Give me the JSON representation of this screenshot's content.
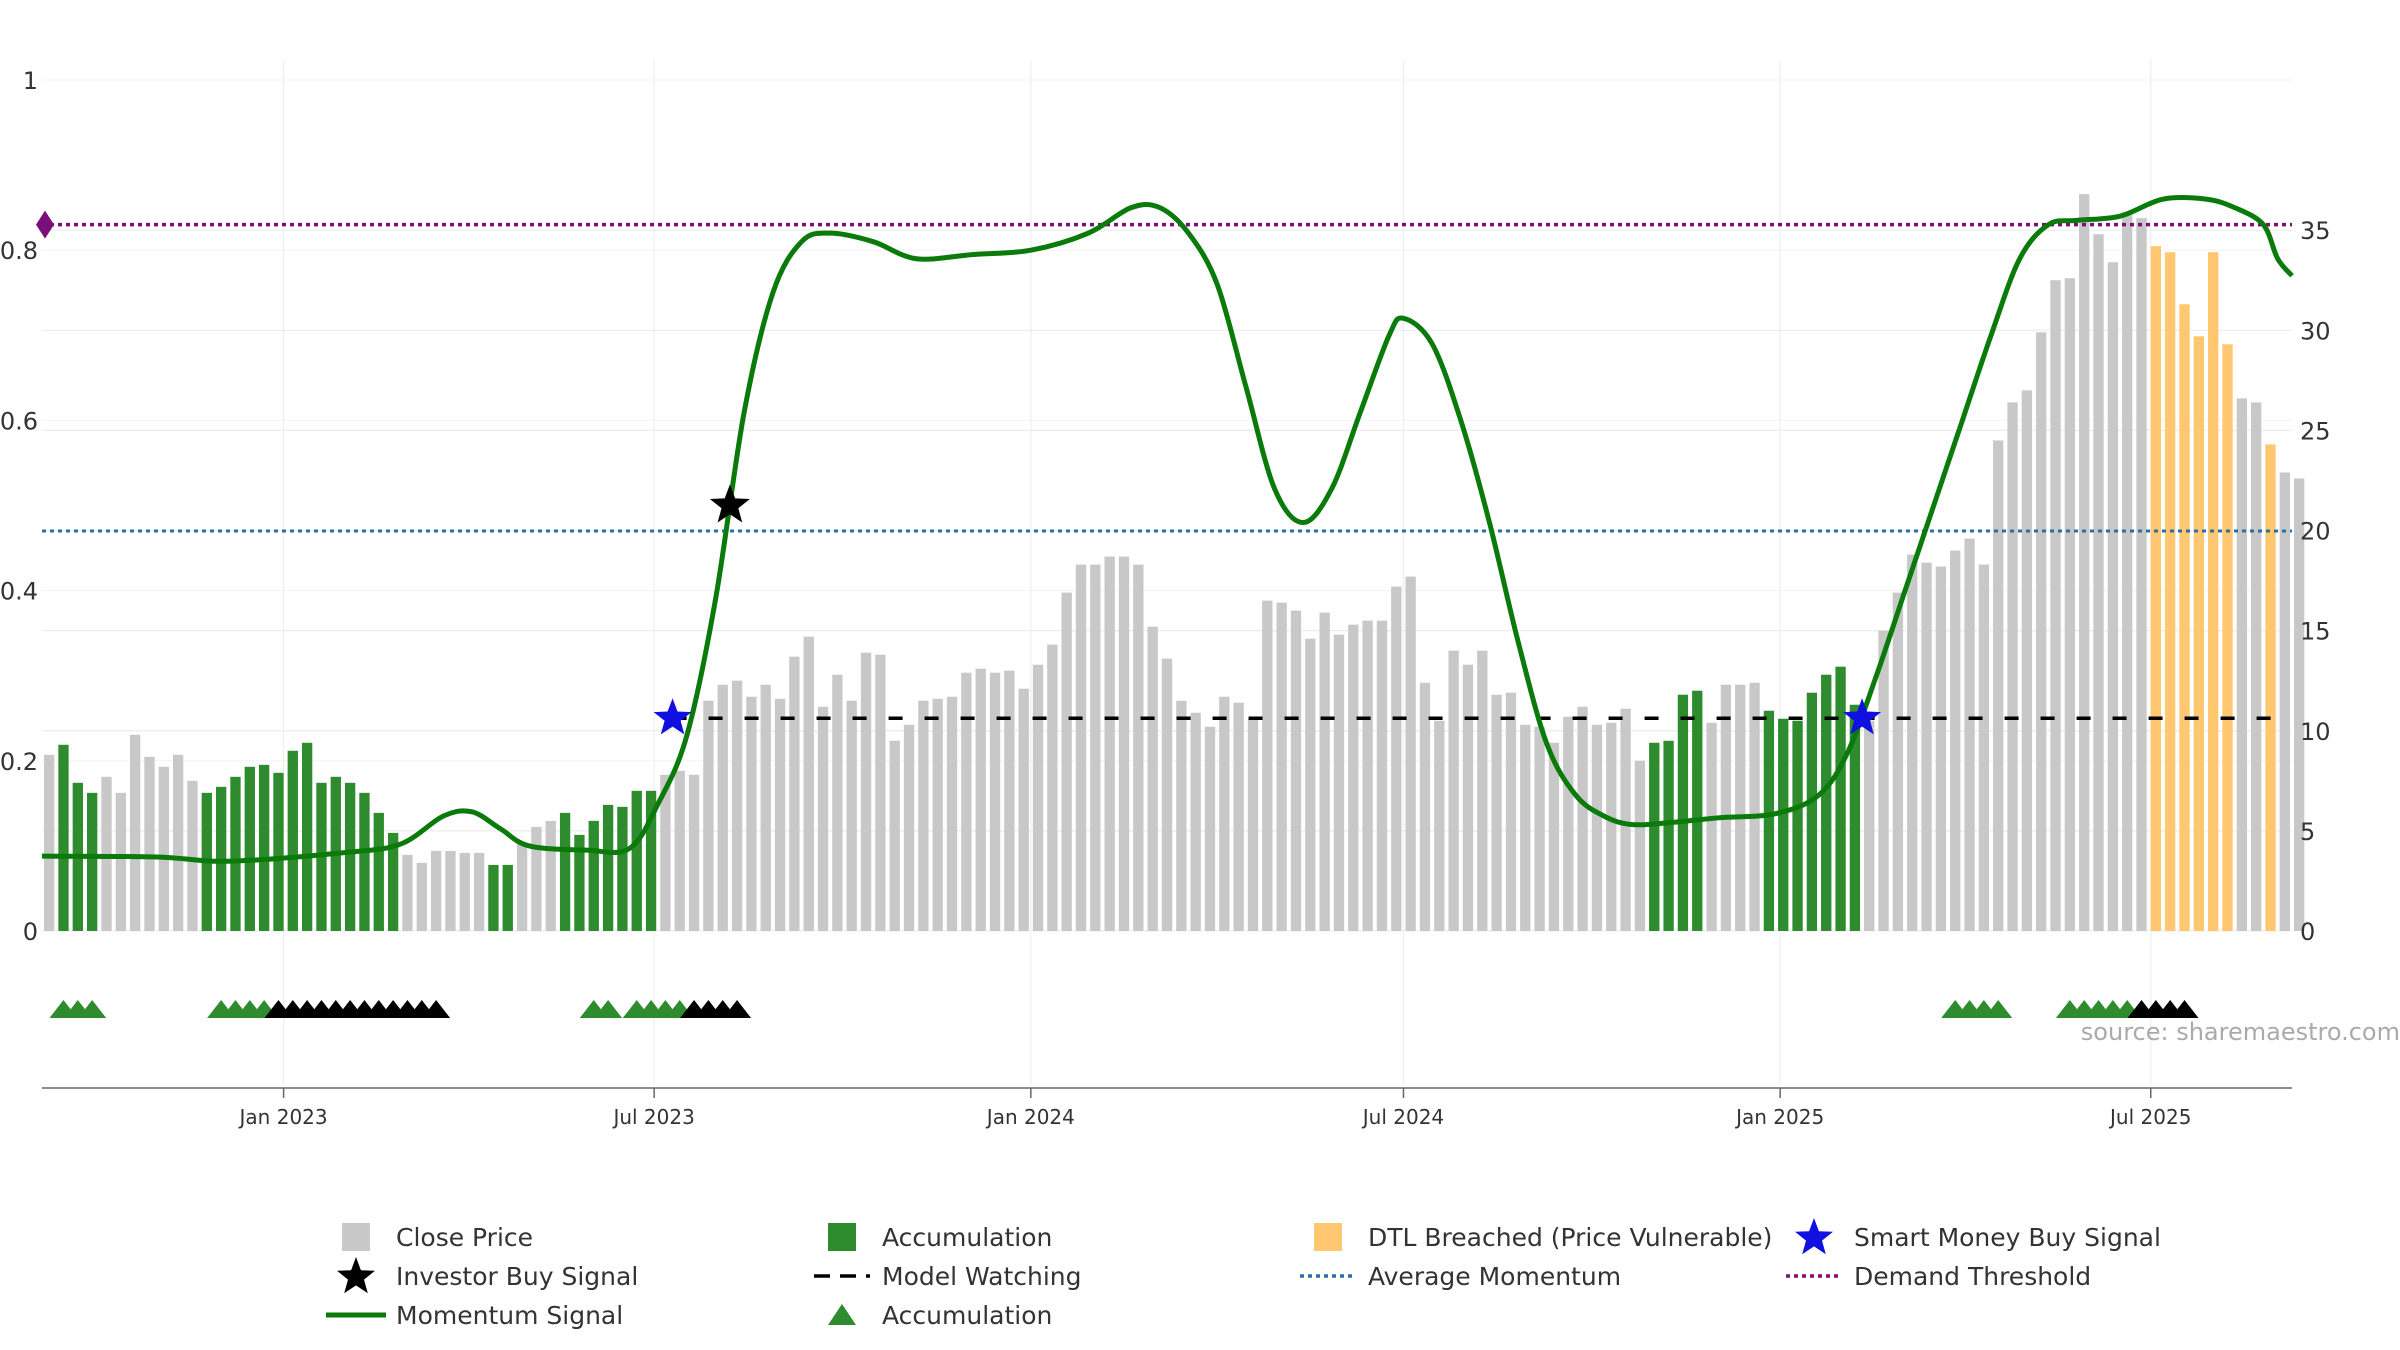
{
  "source": "source: sharemaestro.com",
  "colors": {
    "bar_gray": "#c8c8c8",
    "accumulation": "#2e8b2e",
    "dtl_breached": "#ffc870",
    "momentum": "#0a7a0a",
    "average": "#2a6fa8",
    "demand": "#7a0f7a",
    "model_watching": "#000000",
    "smart_money": "#1010e0",
    "investor": "#000000"
  },
  "chart_data": {
    "type": "bar",
    "left_axis": {
      "min": 0,
      "max": 1,
      "ticks": [
        0,
        0.2,
        0.4,
        0.6,
        0.8,
        1
      ],
      "tick_labels": [
        "0",
        "0.2",
        "0.4",
        "0.6",
        "0.8",
        "1"
      ]
    },
    "right_axis": {
      "min": 0,
      "max": 42.5,
      "ticks": [
        0,
        5,
        10,
        15,
        20,
        25,
        30,
        35
      ],
      "tick_labels": [
        "0",
        "5",
        "10",
        "15",
        "20",
        "25",
        "30",
        "35"
      ]
    },
    "x_axis": {
      "start": "2022-09-05",
      "end": "2025-09-08",
      "ticks": [
        "2023-01-01",
        "2023-07-01",
        "2024-01-01",
        "2024-07-01",
        "2025-01-01",
        "2025-07-01"
      ],
      "tick_labels": [
        "Jan 2023",
        "Jul 2023",
        "Jan 2024",
        "Jul 2024",
        "Jan 2025",
        "Jul 2025"
      ]
    },
    "bar_week_start": "2022-09-05",
    "close_price": [
      8.8,
      9.3,
      7.4,
      6.9,
      7.7,
      6.9,
      9.8,
      8.7,
      8.2,
      8.8,
      7.5,
      6.9,
      7.2,
      7.7,
      8.2,
      8.3,
      7.9,
      9.0,
      9.4,
      7.4,
      7.7,
      7.4,
      6.9,
      5.9,
      4.9,
      3.8,
      3.4,
      4.0,
      4.0,
      3.9,
      3.9,
      3.3,
      3.3,
      4.4,
      5.2,
      5.5,
      5.9,
      4.8,
      5.5,
      6.3,
      6.2,
      7.0,
      7.0,
      7.8,
      8.0,
      7.8,
      11.5,
      12.3,
      12.5,
      11.7,
      12.3,
      11.6,
      13.7,
      14.7,
      11.2,
      12.8,
      11.5,
      13.9,
      13.8,
      9.5,
      10.3,
      11.5,
      11.6,
      11.7,
      12.9,
      13.1,
      12.9,
      13.0,
      12.1,
      13.3,
      14.3,
      16.9,
      18.3,
      18.3,
      18.7,
      18.7,
      18.3,
      15.2,
      13.6,
      11.5,
      10.9,
      10.2,
      11.7,
      11.4,
      10.6,
      16.5,
      16.4,
      16.0,
      14.6,
      15.9,
      14.8,
      15.3,
      15.5,
      15.5,
      17.2,
      17.7,
      12.4,
      10.5,
      14.0,
      13.3,
      14.0,
      11.8,
      11.9,
      10.3,
      10.2,
      9.4,
      10.7,
      11.2,
      10.3,
      10.4,
      11.1,
      8.5,
      9.4,
      9.5,
      11.8,
      12.0,
      10.4,
      12.3,
      12.3,
      12.4,
      11.0,
      10.6,
      10.5,
      11.9,
      12.8,
      13.2,
      11.3,
      10.5,
      15.0,
      16.9,
      18.8,
      18.4,
      18.2,
      19.0,
      19.6,
      18.3,
      24.5,
      26.4,
      27.0,
      29.9,
      32.5,
      32.6,
      36.8,
      34.8,
      33.4,
      35.9,
      35.6,
      34.2,
      33.9,
      31.3,
      29.7,
      33.9,
      29.3,
      26.6,
      26.4,
      24.3,
      22.9,
      22.6
    ],
    "bar_category": [
      "gray",
      "accumulation",
      "accumulation",
      "accumulation",
      "gray",
      "gray",
      "gray",
      "gray",
      "gray",
      "gray",
      "gray",
      "accumulation",
      "accumulation",
      "accumulation",
      "accumulation",
      "accumulation",
      "accumulation",
      "accumulation",
      "accumulation",
      "accumulation",
      "accumulation",
      "accumulation",
      "accumulation",
      "accumulation",
      "accumulation",
      "gray",
      "gray",
      "gray",
      "gray",
      "gray",
      "gray",
      "accumulation",
      "accumulation",
      "gray",
      "gray",
      "gray",
      "accumulation",
      "accumulation",
      "accumulation",
      "accumulation",
      "accumulation",
      "accumulation",
      "accumulation",
      "gray",
      "gray",
      "gray",
      "gray",
      "gray",
      "gray",
      "gray",
      "gray",
      "gray",
      "gray",
      "gray",
      "gray",
      "gray",
      "gray",
      "gray",
      "gray",
      "gray",
      "gray",
      "gray",
      "gray",
      "gray",
      "gray",
      "gray",
      "gray",
      "gray",
      "gray",
      "gray",
      "gray",
      "gray",
      "gray",
      "gray",
      "gray",
      "gray",
      "gray",
      "gray",
      "gray",
      "gray",
      "gray",
      "gray",
      "gray",
      "gray",
      "gray",
      "gray",
      "gray",
      "gray",
      "gray",
      "gray",
      "gray",
      "gray",
      "gray",
      "gray",
      "gray",
      "gray",
      "gray",
      "gray",
      "gray",
      "gray",
      "gray",
      "gray",
      "gray",
      "gray",
      "gray",
      "gray",
      "gray",
      "gray",
      "gray",
      "gray",
      "gray",
      "gray",
      "accumulation",
      "accumulation",
      "accumulation",
      "accumulation",
      "gray",
      "gray",
      "gray",
      "gray",
      "accumulation",
      "accumulation",
      "accumulation",
      "accumulation",
      "accumulation",
      "accumulation",
      "accumulation",
      "gray",
      "gray",
      "gray",
      "gray",
      "gray",
      "gray",
      "gray",
      "gray",
      "gray",
      "gray",
      "gray",
      "gray",
      "gray",
      "gray",
      "gray",
      "gray",
      "gray",
      "gray",
      "gray",
      "gray",
      "dtl",
      "dtl",
      "dtl",
      "dtl",
      "dtl",
      "dtl",
      "gray",
      "gray",
      "dtl",
      "gray",
      "gray",
      "gray",
      "gray",
      "gray",
      "gray"
    ],
    "momentum_signal": [
      {
        "x": "2022-09-05",
        "y": 0.088
      },
      {
        "x": "2022-10-31",
        "y": 0.087
      },
      {
        "x": "2022-12-05",
        "y": 0.082
      },
      {
        "x": "2023-01-30",
        "y": 0.092
      },
      {
        "x": "2023-02-27",
        "y": 0.102
      },
      {
        "x": "2023-03-20",
        "y": 0.135
      },
      {
        "x": "2023-04-03",
        "y": 0.14
      },
      {
        "x": "2023-04-17",
        "y": 0.12
      },
      {
        "x": "2023-05-01",
        "y": 0.1
      },
      {
        "x": "2023-05-29",
        "y": 0.095
      },
      {
        "x": "2023-06-19",
        "y": 0.097
      },
      {
        "x": "2023-07-03",
        "y": 0.15
      },
      {
        "x": "2023-07-17",
        "y": 0.23
      },
      {
        "x": "2023-07-31",
        "y": 0.39
      },
      {
        "x": "2023-08-14",
        "y": 0.61
      },
      {
        "x": "2023-08-28",
        "y": 0.75
      },
      {
        "x": "2023-09-11",
        "y": 0.81
      },
      {
        "x": "2023-09-25",
        "y": 0.82
      },
      {
        "x": "2023-10-16",
        "y": 0.81
      },
      {
        "x": "2023-11-06",
        "y": 0.79
      },
      {
        "x": "2023-12-04",
        "y": 0.795
      },
      {
        "x": "2024-01-01",
        "y": 0.8
      },
      {
        "x": "2024-01-29",
        "y": 0.82
      },
      {
        "x": "2024-02-19",
        "y": 0.85
      },
      {
        "x": "2024-03-04",
        "y": 0.85
      },
      {
        "x": "2024-03-18",
        "y": 0.82
      },
      {
        "x": "2024-04-01",
        "y": 0.76
      },
      {
        "x": "2024-04-15",
        "y": 0.64
      },
      {
        "x": "2024-04-29",
        "y": 0.52
      },
      {
        "x": "2024-05-13",
        "y": 0.48
      },
      {
        "x": "2024-05-27",
        "y": 0.52
      },
      {
        "x": "2024-06-10",
        "y": 0.61
      },
      {
        "x": "2024-06-24",
        "y": 0.7
      },
      {
        "x": "2024-07-01",
        "y": 0.72
      },
      {
        "x": "2024-07-15",
        "y": 0.69
      },
      {
        "x": "2024-07-29",
        "y": 0.6
      },
      {
        "x": "2024-08-12",
        "y": 0.48
      },
      {
        "x": "2024-08-26",
        "y": 0.34
      },
      {
        "x": "2024-09-09",
        "y": 0.22
      },
      {
        "x": "2024-09-23",
        "y": 0.16
      },
      {
        "x": "2024-10-07",
        "y": 0.135
      },
      {
        "x": "2024-10-21",
        "y": 0.125
      },
      {
        "x": "2024-11-11",
        "y": 0.128
      },
      {
        "x": "2024-12-02",
        "y": 0.133
      },
      {
        "x": "2024-12-30",
        "y": 0.138
      },
      {
        "x": "2025-01-20",
        "y": 0.16
      },
      {
        "x": "2025-02-03",
        "y": 0.21
      },
      {
        "x": "2025-02-17",
        "y": 0.3
      },
      {
        "x": "2025-03-03",
        "y": 0.4
      },
      {
        "x": "2025-03-17",
        "y": 0.5
      },
      {
        "x": "2025-03-31",
        "y": 0.6
      },
      {
        "x": "2025-04-14",
        "y": 0.7
      },
      {
        "x": "2025-04-28",
        "y": 0.79
      },
      {
        "x": "2025-05-12",
        "y": 0.83
      },
      {
        "x": "2025-05-26",
        "y": 0.835
      },
      {
        "x": "2025-06-16",
        "y": 0.84
      },
      {
        "x": "2025-07-07",
        "y": 0.86
      },
      {
        "x": "2025-07-28",
        "y": 0.86
      },
      {
        "x": "2025-08-11",
        "y": 0.85
      },
      {
        "x": "2025-08-25",
        "y": 0.83
      },
      {
        "x": "2025-09-01",
        "y": 0.79
      },
      {
        "x": "2025-09-08",
        "y": 0.77
      }
    ],
    "average_momentum": 0.47,
    "demand_threshold": 0.83,
    "model_watching": {
      "y": 0.25,
      "start": "2023-07-10",
      "end": "2025-09-08"
    },
    "investor_buy_signals": [
      {
        "x": "2023-08-07",
        "y": 0.5
      }
    ],
    "smart_money_buy_signals": [
      {
        "x": "2023-07-10",
        "y": 0.25
      },
      {
        "x": "2025-02-10",
        "y": 0.25
      }
    ],
    "accumulation_markers": {
      "green_weeks": [
        1,
        2,
        3,
        12,
        13,
        14,
        15,
        38,
        39,
        41,
        42,
        43,
        44,
        133,
        134,
        135,
        136,
        141,
        142,
        143,
        144,
        145
      ],
      "black_weeks": [
        16,
        17,
        18,
        19,
        20,
        21,
        22,
        23,
        24,
        25,
        26,
        27,
        45,
        46,
        47,
        48,
        146,
        147,
        148,
        149
      ]
    },
    "legend": [
      {
        "label": "Close Price",
        "symbol": "gray-square"
      },
      {
        "label": "Accumulation",
        "symbol": "green-square"
      },
      {
        "label": "DTL Breached (Price Vulnerable)",
        "symbol": "orange-square"
      },
      {
        "label": "Smart Money Buy Signal",
        "symbol": "blue-star"
      },
      {
        "label": "Investor Buy Signal",
        "symbol": "black-star"
      },
      {
        "label": "Model Watching",
        "symbol": "black-dash"
      },
      {
        "label": "Average Momentum",
        "symbol": "blue-dotted"
      },
      {
        "label": "Demand Threshold",
        "symbol": "purple-dotted"
      },
      {
        "label": "Momentum Signal",
        "symbol": "green-line"
      },
      {
        "label": "Accumulation",
        "symbol": "green-triangle"
      }
    ]
  }
}
